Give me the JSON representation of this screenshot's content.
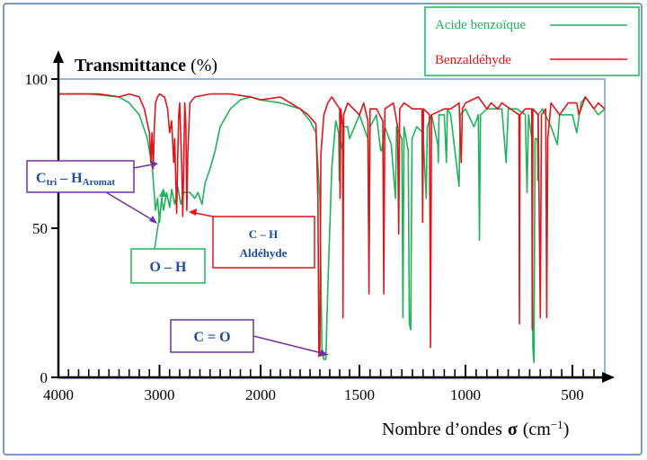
{
  "chart_data": {
    "type": "line",
    "title": "",
    "ylabel": "Transmittance (%)",
    "ylabel_main": "Transmittance",
    "ylabel_unit": "(%)",
    "xlabel_text": "Nombre d’ondes",
    "xlabel_symbol": "σ",
    "xlabel_unit_open": "(cm",
    "xlabel_unit_exp": "−1",
    "xlabel_unit_close": ")",
    "xlim": [
      4000,
      350
    ],
    "ylim": [
      0,
      100
    ],
    "x_ticks": [
      4000,
      3000,
      2000,
      1500,
      1000,
      500
    ],
    "x_tick_labels": [
      "4000",
      "3000",
      "2000",
      "1500",
      "1000",
      "500"
    ],
    "y_ticks": [
      0,
      50,
      100
    ],
    "y_tick_labels": [
      "0",
      "50",
      "100"
    ],
    "legend_position": "top-right",
    "series": [
      {
        "name": "Acide benzoïque",
        "color": "#1db35a",
        "points": [
          [
            4000,
            95
          ],
          [
            3700,
            95
          ],
          [
            3400,
            94
          ],
          [
            3300,
            92
          ],
          [
            3200,
            88
          ],
          [
            3120,
            80
          ],
          [
            3070,
            70
          ],
          [
            3040,
            56
          ],
          [
            3020,
            60
          ],
          [
            3000,
            52
          ],
          [
            2980,
            60
          ],
          [
            2960,
            56
          ],
          [
            2930,
            62
          ],
          [
            2900,
            57
          ],
          [
            2880,
            63
          ],
          [
            2850,
            58
          ],
          [
            2820,
            64
          ],
          [
            2790,
            58
          ],
          [
            2760,
            62
          ],
          [
            2700,
            62
          ],
          [
            2650,
            60
          ],
          [
            2620,
            62
          ],
          [
            2580,
            58
          ],
          [
            2550,
            65
          ],
          [
            2500,
            70
          ],
          [
            2450,
            76
          ],
          [
            2400,
            84
          ],
          [
            2300,
            90
          ],
          [
            2200,
            93
          ],
          [
            2100,
            94
          ],
          [
            2000,
            93
          ],
          [
            1900,
            92
          ],
          [
            1800,
            90
          ],
          [
            1750,
            86
          ],
          [
            1720,
            82
          ],
          [
            1700,
            60
          ],
          [
            1690,
            10
          ],
          [
            1680,
            6
          ],
          [
            1670,
            6
          ],
          [
            1660,
            30
          ],
          [
            1640,
            70
          ],
          [
            1620,
            86
          ],
          [
            1605,
            82
          ],
          [
            1602,
            66
          ],
          [
            1598,
            80
          ],
          [
            1585,
            76
          ],
          [
            1583,
            56
          ],
          [
            1578,
            84
          ],
          [
            1560,
            84
          ],
          [
            1550,
            80
          ],
          [
            1500,
            88
          ],
          [
            1460,
            80
          ],
          [
            1455,
            40
          ],
          [
            1450,
            84
          ],
          [
            1420,
            88
          ],
          [
            1400,
            76
          ],
          [
            1395,
            76
          ],
          [
            1380,
            84
          ],
          [
            1350,
            78
          ],
          [
            1330,
            60
          ],
          [
            1325,
            84
          ],
          [
            1300,
            80
          ],
          [
            1295,
            20
          ],
          [
            1290,
            84
          ],
          [
            1270,
            76
          ],
          [
            1265,
            18
          ],
          [
            1258,
            16
          ],
          [
            1252,
            80
          ],
          [
            1230,
            84
          ],
          [
            1200,
            82
          ],
          [
            1185,
            60
          ],
          [
            1180,
            84
          ],
          [
            1160,
            88
          ],
          [
            1130,
            78
          ],
          [
            1128,
            72
          ],
          [
            1125,
            88
          ],
          [
            1100,
            88
          ],
          [
            1090,
            72
          ],
          [
            1085,
            90
          ],
          [
            1070,
            88
          ],
          [
            1030,
            64
          ],
          [
            1025,
            88
          ],
          [
            1000,
            90
          ],
          [
            960,
            84
          ],
          [
            940,
            88
          ],
          [
            935,
            46
          ],
          [
            930,
            88
          ],
          [
            900,
            90
          ],
          [
            830,
            90
          ],
          [
            810,
            72
          ],
          [
            800,
            90
          ],
          [
            760,
            90
          ],
          [
            720,
            88
          ],
          [
            712,
            62
          ],
          [
            705,
            88
          ],
          [
            690,
            80
          ],
          [
            685,
            10
          ],
          [
            680,
            5
          ],
          [
            675,
            80
          ],
          [
            665,
            80
          ],
          [
            663,
            78
          ],
          [
            662,
            66
          ],
          [
            660,
            88
          ],
          [
            640,
            90
          ],
          [
            600,
            84
          ],
          [
            570,
            78
          ],
          [
            560,
            88
          ],
          [
            500,
            88
          ],
          [
            480,
            82
          ],
          [
            460,
            92
          ],
          [
            440,
            94
          ],
          [
            420,
            92
          ],
          [
            400,
            90
          ],
          [
            380,
            88
          ],
          [
            350,
            90
          ]
        ]
      },
      {
        "name": "Benzaldéhyde",
        "color": "#e0141b",
        "points": [
          [
            4000,
            95
          ],
          [
            3800,
            95
          ],
          [
            3600,
            95
          ],
          [
            3400,
            94
          ],
          [
            3300,
            95
          ],
          [
            3200,
            94
          ],
          [
            3150,
            90
          ],
          [
            3100,
            82
          ],
          [
            3085,
            72
          ],
          [
            3075,
            82
          ],
          [
            3062,
            70
          ],
          [
            3050,
            85
          ],
          [
            3040,
            92
          ],
          [
            3020,
            94
          ],
          [
            3000,
            95
          ],
          [
            2950,
            94
          ],
          [
            2920,
            90
          ],
          [
            2900,
            82
          ],
          [
            2880,
            86
          ],
          [
            2860,
            72
          ],
          [
            2850,
            80
          ],
          [
            2830,
            55
          ],
          [
            2820,
            74
          ],
          [
            2810,
            88
          ],
          [
            2800,
            92
          ],
          [
            2780,
            70
          ],
          [
            2770,
            54
          ],
          [
            2760,
            72
          ],
          [
            2750,
            92
          ],
          [
            2740,
            85
          ],
          [
            2730,
            56
          ],
          [
            2720,
            75
          ],
          [
            2700,
            92
          ],
          [
            2650,
            94
          ],
          [
            2500,
            95
          ],
          [
            2300,
            95
          ],
          [
            2100,
            94
          ],
          [
            2000,
            93
          ],
          [
            1900,
            94
          ],
          [
            1850,
            92
          ],
          [
            1800,
            90
          ],
          [
            1760,
            88
          ],
          [
            1720,
            85
          ],
          [
            1710,
            60
          ],
          [
            1705,
            7
          ],
          [
            1700,
            10
          ],
          [
            1695,
            75
          ],
          [
            1680,
            88
          ],
          [
            1660,
            92
          ],
          [
            1640,
            94
          ],
          [
            1600,
            90
          ],
          [
            1598,
            60
          ],
          [
            1594,
            90
          ],
          [
            1585,
            84
          ],
          [
            1583,
            20
          ],
          [
            1580,
            88
          ],
          [
            1560,
            92
          ],
          [
            1500,
            88
          ],
          [
            1480,
            92
          ],
          [
            1460,
            86
          ],
          [
            1455,
            28
          ],
          [
            1450,
            90
          ],
          [
            1420,
            90
          ],
          [
            1390,
            86
          ],
          [
            1385,
            28
          ],
          [
            1380,
            90
          ],
          [
            1340,
            92
          ],
          [
            1320,
            84
          ],
          [
            1315,
            48
          ],
          [
            1310,
            90
          ],
          [
            1290,
            92
          ],
          [
            1250,
            90
          ],
          [
            1205,
            90
          ],
          [
            1202,
            52
          ],
          [
            1198,
            90
          ],
          [
            1170,
            88
          ],
          [
            1165,
            10
          ],
          [
            1160,
            88
          ],
          [
            1100,
            90
          ],
          [
            1070,
            90
          ],
          [
            1030,
            92
          ],
          [
            1020,
            72
          ],
          [
            1015,
            90
          ],
          [
            1000,
            92
          ],
          [
            940,
            94
          ],
          [
            900,
            90
          ],
          [
            880,
            92
          ],
          [
            850,
            90
          ],
          [
            830,
            92
          ],
          [
            750,
            88
          ],
          [
            748,
            18
          ],
          [
            745,
            88
          ],
          [
            720,
            90
          ],
          [
            690,
            90
          ],
          [
            688,
            16
          ],
          [
            685,
            90
          ],
          [
            660,
            88
          ],
          [
            650,
            20
          ],
          [
            645,
            88
          ],
          [
            625,
            90
          ],
          [
            620,
            20
          ],
          [
            615,
            80
          ],
          [
            600,
            92
          ],
          [
            560,
            88
          ],
          [
            520,
            92
          ],
          [
            480,
            92
          ],
          [
            470,
            88
          ],
          [
            440,
            94
          ],
          [
            400,
            90
          ],
          [
            380,
            92
          ],
          [
            350,
            90
          ]
        ]
      }
    ],
    "annotations": [
      {
        "label_main": "C",
        "label_sub1": "tri",
        "label_mid": " – H",
        "label_sub2": "Aromat"
      },
      {
        "label": "O – H"
      },
      {
        "label_line1": "C – H",
        "label_line2": "Aldéhyde"
      },
      {
        "label": "C = O"
      }
    ]
  },
  "colors": {
    "annot_blue": "#1f4ea0",
    "green_box": "#1db35a",
    "red_box": "#e0141b",
    "purple_box": "#7030a0",
    "axis": "#000000"
  }
}
